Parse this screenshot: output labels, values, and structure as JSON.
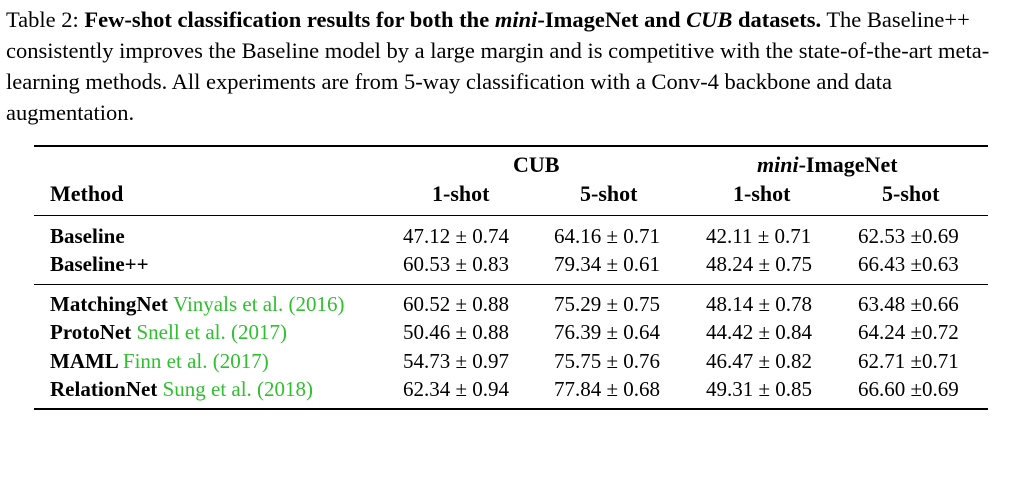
{
  "caption": {
    "label": "Table 2:",
    "bold_pre": "Few-shot classification results for both the",
    "bold_it1": "mini",
    "bold_mid": "-ImageNet and",
    "bold_it2": "CUB",
    "bold_post": "datasets.",
    "rest": "The Baseline++ consistently improves the Baseline model by a large margin and is competitive with the state-of-the-art meta-learning methods. All experiments are from 5-way classification with a Conv-4 backbone and data augmentation."
  },
  "table": {
    "group_cub": "CUB",
    "group_mini_it": "mini",
    "group_mini_rest": "-ImageNet",
    "col_method": "Method",
    "col_cub_1": "1-shot",
    "col_cub_5": "5-shot",
    "col_mini_1": "1-shot",
    "col_mini_5": "5-shot",
    "rows": [
      {
        "method": "Baseline",
        "cite": "",
        "cite_year": "",
        "cite_close": "",
        "cub1": "47.12 ± 0.74",
        "cub5": "64.16 ± 0.71",
        "mini1": "42.11 ± 0.71",
        "mini5": "62.53 ±0.69"
      },
      {
        "method": "Baseline++",
        "cite": "",
        "cite_year": "",
        "cite_close": "",
        "cub1": "60.53 ± 0.83",
        "cub5": "79.34 ± 0.61",
        "mini1": "48.24 ± 0.75",
        "mini5": "66.43 ±0.63"
      },
      {
        "method": "MatchingNet",
        "cite": "Vinyals et al. (",
        "cite_year": "2016",
        "cite_close": ")",
        "cub1": "60.52 ± 0.88",
        "cub5": "75.29 ± 0.75",
        "mini1": "48.14 ± 0.78",
        "mini5": "63.48 ±0.66"
      },
      {
        "method": "ProtoNet",
        "cite": "Snell et al. (",
        "cite_year": "2017",
        "cite_close": ")",
        "cub1": "50.46 ± 0.88",
        "cub5": "76.39 ± 0.64",
        "mini1": "44.42 ± 0.84",
        "mini5": "64.24 ±0.72"
      },
      {
        "method": "MAML",
        "cite": "Finn et al. (",
        "cite_year": "2017",
        "cite_close": ")",
        "cub1": "54.73 ± 0.97",
        "cub5": "75.75 ± 0.76",
        "mini1": "46.47 ± 0.82",
        "mini5": "62.71 ±0.71"
      },
      {
        "method": "RelationNet",
        "cite": "Sung et al. (",
        "cite_year": "2018",
        "cite_close": ")",
        "cub1": "62.34 ± 0.94",
        "cub5": "77.84 ± 0.68",
        "mini1": "49.31 ± 0.85",
        "mini5": "66.60 ±0.69"
      }
    ]
  },
  "colors": {
    "citation": "#2fbf2f",
    "text": "#000000"
  }
}
